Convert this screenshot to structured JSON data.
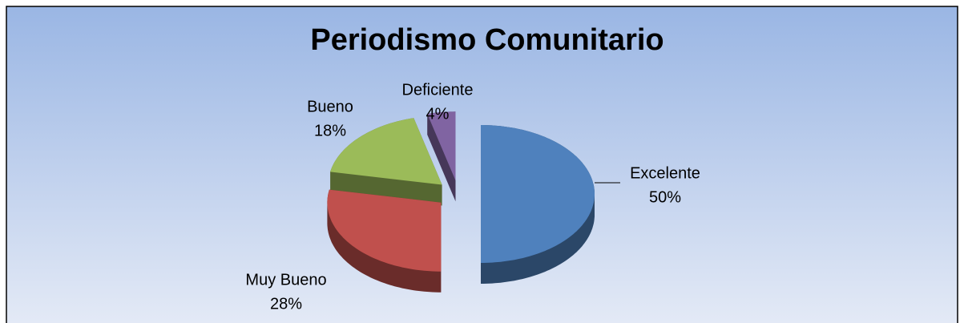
{
  "chart_data": {
    "type": "pie3d",
    "title": "Periodismo Comunitario",
    "categories": [
      "Excelente",
      "Muy Bueno",
      "Bueno",
      "Deficiente"
    ],
    "values": [
      50,
      28,
      18,
      4
    ],
    "value_labels": [
      "50%",
      "28%",
      "18%",
      "4%"
    ],
    "colors": [
      "#4f81bd",
      "#c0504d",
      "#9bbb59",
      "#8064a2"
    ]
  }
}
